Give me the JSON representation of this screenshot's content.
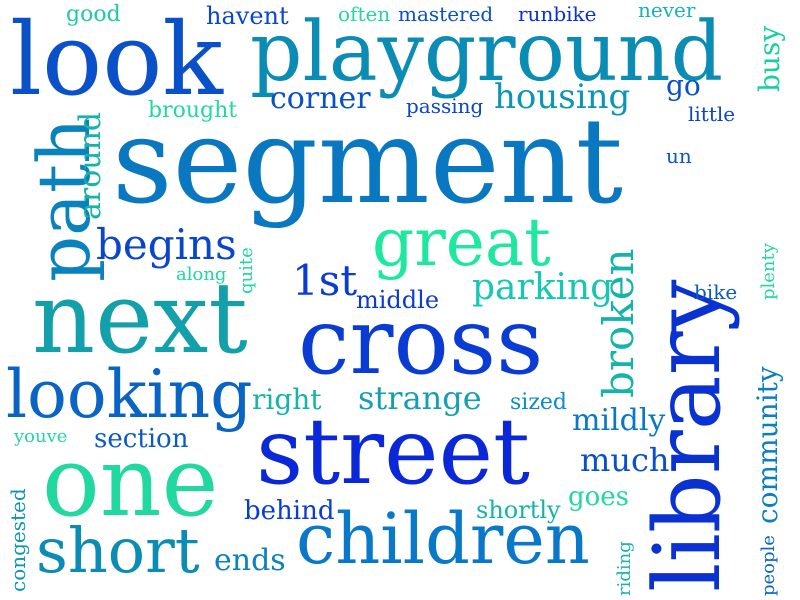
{
  "words": [
    {
      "text": "segment"
    },
    {
      "text": "playground"
    },
    {
      "text": "look"
    },
    {
      "text": "next"
    },
    {
      "text": "cross"
    },
    {
      "text": "street"
    },
    {
      "text": "library"
    },
    {
      "text": "one"
    },
    {
      "text": "children"
    },
    {
      "text": "great"
    },
    {
      "text": "path"
    },
    {
      "text": "looking"
    },
    {
      "text": "short"
    },
    {
      "text": "begins"
    },
    {
      "text": "broken"
    },
    {
      "text": "housing"
    },
    {
      "text": "corner"
    },
    {
      "text": "parking"
    },
    {
      "text": "1st"
    },
    {
      "text": "strange"
    },
    {
      "text": "much"
    },
    {
      "text": "mildly"
    },
    {
      "text": "community"
    },
    {
      "text": "behind"
    },
    {
      "text": "ends"
    },
    {
      "text": "section"
    },
    {
      "text": "right"
    },
    {
      "text": "middle"
    },
    {
      "text": "around"
    },
    {
      "text": "busy"
    },
    {
      "text": "go"
    },
    {
      "text": "goes"
    },
    {
      "text": "shortly"
    },
    {
      "text": "sized"
    },
    {
      "text": "mastered"
    },
    {
      "text": "runbike"
    },
    {
      "text": "often"
    },
    {
      "text": "havent"
    },
    {
      "text": "good"
    },
    {
      "text": "never"
    },
    {
      "text": "passing"
    },
    {
      "text": "brought"
    },
    {
      "text": "little"
    },
    {
      "text": "un"
    },
    {
      "text": "along"
    },
    {
      "text": "quite"
    },
    {
      "text": "bike"
    },
    {
      "text": "plenty"
    },
    {
      "text": "youve"
    },
    {
      "text": "congested"
    },
    {
      "text": "riding"
    },
    {
      "text": "people"
    }
  ]
}
